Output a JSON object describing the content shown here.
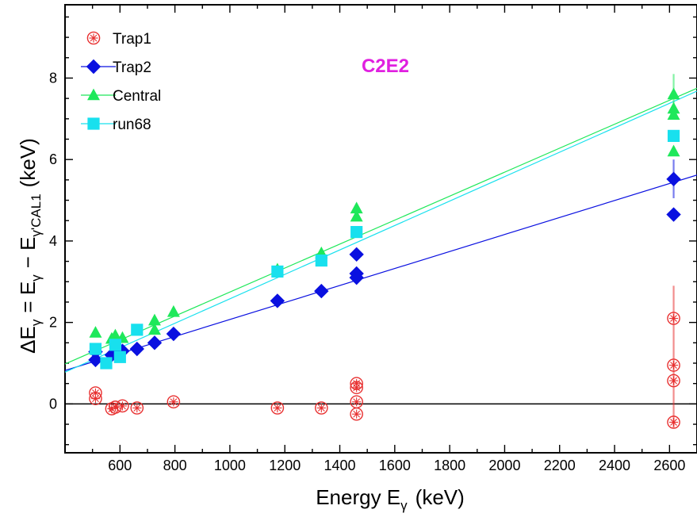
{
  "chart_data": {
    "type": "scatter",
    "title": "C2E2",
    "xlabel": "Energy E",
    "xlabel_sub": "γ",
    "xlabel_unit": "(keV)",
    "ylabel_parts": {
      "delta": "ΔE",
      "sub1": "γ",
      "eq": "= E",
      "sub2": "γ",
      "minus": "− E",
      "sub3": "γ'CAL1",
      "unit": "(keV)"
    },
    "xlim": [
      400,
      2700
    ],
    "ylim": [
      -1.2,
      9.8
    ],
    "xticks": [
      600,
      800,
      1000,
      1200,
      1400,
      1600,
      1800,
      2000,
      2200,
      2400,
      2600
    ],
    "yticks": [
      0,
      2,
      4,
      6,
      8
    ],
    "zero_line": true,
    "legend_placement": "top-left",
    "series": [
      {
        "name": "Trap1",
        "marker": "circle-star",
        "color": "#e83030",
        "points": [
          {
            "x": 511,
            "y": 0.27
          },
          {
            "x": 511,
            "y": 0.13
          },
          {
            "x": 570,
            "y": -0.12
          },
          {
            "x": 583,
            "y": -0.08
          },
          {
            "x": 609,
            "y": -0.05
          },
          {
            "x": 662,
            "y": -0.1
          },
          {
            "x": 795,
            "y": 0.05
          },
          {
            "x": 1173,
            "y": -0.1
          },
          {
            "x": 1333,
            "y": -0.1
          },
          {
            "x": 1461,
            "y": 0.5
          },
          {
            "x": 1461,
            "y": 0.4
          },
          {
            "x": 1461,
            "y": 0.05
          },
          {
            "x": 1461,
            "y": -0.25
          },
          {
            "x": 2615,
            "y": 2.1
          },
          {
            "x": 2615,
            "y": 0.95
          },
          {
            "x": 2615,
            "y": 0.57
          },
          {
            "x": 2615,
            "y": -0.45
          }
        ],
        "errors": [
          {
            "x": 2615,
            "lo": -0.6,
            "hi": 2.9
          }
        ]
      },
      {
        "name": "Trap2",
        "marker": "diamond",
        "color": "#0a10e0",
        "points": [
          {
            "x": 511,
            "y": 1.28
          },
          {
            "x": 511,
            "y": 1.08
          },
          {
            "x": 570,
            "y": 1.2
          },
          {
            "x": 583,
            "y": 1.25
          },
          {
            "x": 609,
            "y": 1.3
          },
          {
            "x": 662,
            "y": 1.35
          },
          {
            "x": 726,
            "y": 1.5
          },
          {
            "x": 795,
            "y": 1.72
          },
          {
            "x": 1173,
            "y": 2.53
          },
          {
            "x": 1333,
            "y": 2.77
          },
          {
            "x": 1461,
            "y": 3.67
          },
          {
            "x": 1461,
            "y": 3.2
          },
          {
            "x": 1461,
            "y": 3.1
          },
          {
            "x": 2615,
            "y": 5.52
          },
          {
            "x": 2615,
            "y": 4.65
          }
        ],
        "errors": [
          {
            "x": 2615,
            "lo": 5.05,
            "hi": 6.0
          }
        ],
        "fit": {
          "x": [
            400,
            2700
          ],
          "y": [
            0.82,
            5.62
          ]
        }
      },
      {
        "name": "Central",
        "marker": "triangle",
        "color": "#1ee85a",
        "points": [
          {
            "x": 511,
            "y": 1.75
          },
          {
            "x": 570,
            "y": 1.6
          },
          {
            "x": 583,
            "y": 1.68
          },
          {
            "x": 609,
            "y": 1.62
          },
          {
            "x": 726,
            "y": 2.05
          },
          {
            "x": 726,
            "y": 1.82
          },
          {
            "x": 795,
            "y": 2.26
          },
          {
            "x": 1173,
            "y": 3.3
          },
          {
            "x": 1333,
            "y": 3.7
          },
          {
            "x": 1461,
            "y": 4.8
          },
          {
            "x": 1461,
            "y": 4.6
          },
          {
            "x": 2615,
            "y": 7.6
          },
          {
            "x": 2615,
            "y": 7.25
          },
          {
            "x": 2615,
            "y": 7.1
          },
          {
            "x": 2615,
            "y": 6.2
          }
        ],
        "errors": [
          {
            "x": 2615,
            "lo": 7.1,
            "hi": 8.1
          }
        ],
        "fit": {
          "x": [
            400,
            2700
          ],
          "y": [
            0.98,
            7.75
          ]
        }
      },
      {
        "name": "run68",
        "marker": "square",
        "color": "#18e0ee",
        "points": [
          {
            "x": 511,
            "y": 1.35
          },
          {
            "x": 550,
            "y": 1.0
          },
          {
            "x": 583,
            "y": 1.45
          },
          {
            "x": 600,
            "y": 1.15
          },
          {
            "x": 662,
            "y": 1.82
          },
          {
            "x": 1173,
            "y": 3.25
          },
          {
            "x": 1333,
            "y": 3.52
          },
          {
            "x": 1461,
            "y": 4.22
          },
          {
            "x": 2615,
            "y": 6.58
          }
        ],
        "fit": {
          "x": [
            400,
            2700
          ],
          "y": [
            0.78,
            7.68
          ]
        }
      }
    ]
  }
}
